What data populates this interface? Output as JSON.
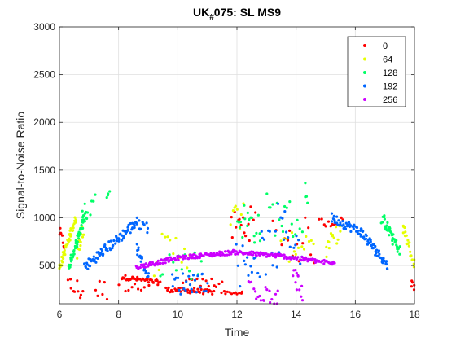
{
  "chart_data": {
    "type": "scatter",
    "title": "UK",
    "title_subscript": "#",
    "title_rest": "075: SL MS9",
    "xlabel": "Time",
    "ylabel": "Signal-to-Noise Ratio",
    "xlim": [
      6,
      18
    ],
    "ylim": [
      100,
      3000
    ],
    "xticks": [
      6,
      8,
      10,
      12,
      14,
      16,
      18
    ],
    "yticks": [
      500,
      1000,
      1500,
      2000,
      2500,
      3000
    ],
    "grid": true,
    "legend_position": "top-right",
    "series": [
      {
        "name": "0",
        "color": "#ff0000",
        "segments": [
          {
            "x0": 6.0,
            "y0": 850,
            "x1": 6.15,
            "y1": 720,
            "n": 8,
            "jitter": 60
          },
          {
            "x0": 6.3,
            "y0": 280,
            "x1": 6.8,
            "y1": 230,
            "n": 10,
            "jitter": 120
          },
          {
            "x0": 7.2,
            "y0": 250,
            "x1": 7.6,
            "y1": 240,
            "n": 6,
            "jitter": 120
          },
          {
            "x0": 8.1,
            "y0": 380,
            "x1": 9.4,
            "y1": 320,
            "n": 40,
            "jitter": 25
          },
          {
            "x0": 8.0,
            "y0": 300,
            "x1": 9.0,
            "y1": 260,
            "n": 10,
            "jitter": 80
          },
          {
            "x0": 9.6,
            "y0": 250,
            "x1": 11.2,
            "y1": 220,
            "n": 45,
            "jitter": 25
          },
          {
            "x0": 10.2,
            "y0": 300,
            "x1": 11.5,
            "y1": 330,
            "n": 15,
            "jitter": 60
          },
          {
            "x0": 11.5,
            "y0": 220,
            "x1": 12.2,
            "y1": 210,
            "n": 12,
            "jitter": 15
          },
          {
            "x0": 11.8,
            "y0": 900,
            "x1": 12.6,
            "y1": 950,
            "n": 15,
            "jitter": 180
          },
          {
            "x0": 13.2,
            "y0": 800,
            "x1": 14.6,
            "y1": 750,
            "n": 15,
            "jitter": 250
          },
          {
            "x0": 14.8,
            "y0": 950,
            "x1": 15.6,
            "y1": 960,
            "n": 12,
            "jitter": 50
          },
          {
            "x0": 17.9,
            "y0": 350,
            "x1": 18.0,
            "y1": 250,
            "n": 5,
            "jitter": 60
          }
        ]
      },
      {
        "name": "64",
        "color": "#e5ff00",
        "segments": [
          {
            "x0": 6.0,
            "y0": 480,
            "x1": 6.55,
            "y1": 1000,
            "n": 45,
            "jitter": 45
          },
          {
            "x0": 6.6,
            "y0": 650,
            "x1": 6.8,
            "y1": 900,
            "n": 12,
            "jitter": 80
          },
          {
            "x0": 9.2,
            "y0": 600,
            "x1": 10.5,
            "y1": 700,
            "n": 15,
            "jitter": 220
          },
          {
            "x0": 11.8,
            "y0": 900,
            "x1": 12.2,
            "y1": 1100,
            "n": 8,
            "jitter": 220
          },
          {
            "x0": 13.5,
            "y0": 650,
            "x1": 14.6,
            "y1": 800,
            "n": 14,
            "jitter": 150
          },
          {
            "x0": 15.0,
            "y0": 650,
            "x1": 15.5,
            "y1": 900,
            "n": 15,
            "jitter": 100
          },
          {
            "x0": 17.6,
            "y0": 900,
            "x1": 18.0,
            "y1": 500,
            "n": 22,
            "jitter": 60
          }
        ]
      },
      {
        "name": "128",
        "color": "#00ff66",
        "segments": [
          {
            "x0": 6.3,
            "y0": 480,
            "x1": 6.9,
            "y1": 1050,
            "n": 55,
            "jitter": 50
          },
          {
            "x0": 6.8,
            "y0": 1050,
            "x1": 7.2,
            "y1": 1150,
            "n": 8,
            "jitter": 120
          },
          {
            "x0": 7.6,
            "y0": 1250,
            "x1": 7.7,
            "y1": 1300,
            "n": 4,
            "jitter": 40
          },
          {
            "x0": 9.4,
            "y0": 550,
            "x1": 10.8,
            "y1": 500,
            "n": 14,
            "jitter": 160
          },
          {
            "x0": 12.0,
            "y0": 1000,
            "x1": 12.8,
            "y1": 900,
            "n": 18,
            "jitter": 200
          },
          {
            "x0": 13.0,
            "y0": 1050,
            "x1": 14.2,
            "y1": 950,
            "n": 18,
            "jitter": 220
          },
          {
            "x0": 14.3,
            "y0": 1350,
            "x1": 14.4,
            "y1": 1100,
            "n": 5,
            "jitter": 80
          },
          {
            "x0": 16.9,
            "y0": 1000,
            "x1": 17.5,
            "y1": 650,
            "n": 45,
            "jitter": 60
          }
        ]
      },
      {
        "name": "192",
        "color": "#0066ff",
        "segments": [
          {
            "x0": 6.85,
            "y0": 480,
            "x1": 8.6,
            "y1": 950,
            "n": 80,
            "jitter": 55
          },
          {
            "x0": 8.6,
            "y0": 950,
            "x1": 9.0,
            "y1": 900,
            "n": 12,
            "jitter": 60
          },
          {
            "x0": 8.6,
            "y0": 700,
            "x1": 9.0,
            "y1": 400,
            "n": 20,
            "jitter": 60
          },
          {
            "x0": 9.8,
            "y0": 300,
            "x1": 11.0,
            "y1": 350,
            "n": 25,
            "jitter": 120
          },
          {
            "x0": 12.0,
            "y0": 500,
            "x1": 13.4,
            "y1": 700,
            "n": 25,
            "jitter": 250
          },
          {
            "x0": 13.4,
            "y0": 900,
            "x1": 14.2,
            "y1": 700,
            "n": 15,
            "jitter": 250
          },
          {
            "x0": 15.2,
            "y0": 1000,
            "x1": 16.2,
            "y1": 850,
            "n": 40,
            "jitter": 50
          },
          {
            "x0": 16.2,
            "y0": 850,
            "x1": 17.1,
            "y1": 500,
            "n": 50,
            "jitter": 50
          }
        ]
      },
      {
        "name": "256",
        "color": "#cc00ff",
        "segments": [
          {
            "x0": 8.6,
            "y0": 480,
            "x1": 10.0,
            "y1": 580,
            "n": 50,
            "jitter": 22
          },
          {
            "x0": 10.0,
            "y0": 580,
            "x1": 11.9,
            "y1": 640,
            "n": 65,
            "jitter": 22
          },
          {
            "x0": 11.9,
            "y0": 640,
            "x1": 13.5,
            "y1": 600,
            "n": 60,
            "jitter": 22
          },
          {
            "x0": 13.5,
            "y0": 600,
            "x1": 15.3,
            "y1": 520,
            "n": 60,
            "jitter": 22
          },
          {
            "x0": 12.4,
            "y0": 300,
            "x1": 13.4,
            "y1": 200,
            "n": 20,
            "jitter": 150
          },
          {
            "x0": 13.9,
            "y0": 400,
            "x1": 14.2,
            "y1": 250,
            "n": 12,
            "jitter": 120
          }
        ]
      }
    ]
  }
}
